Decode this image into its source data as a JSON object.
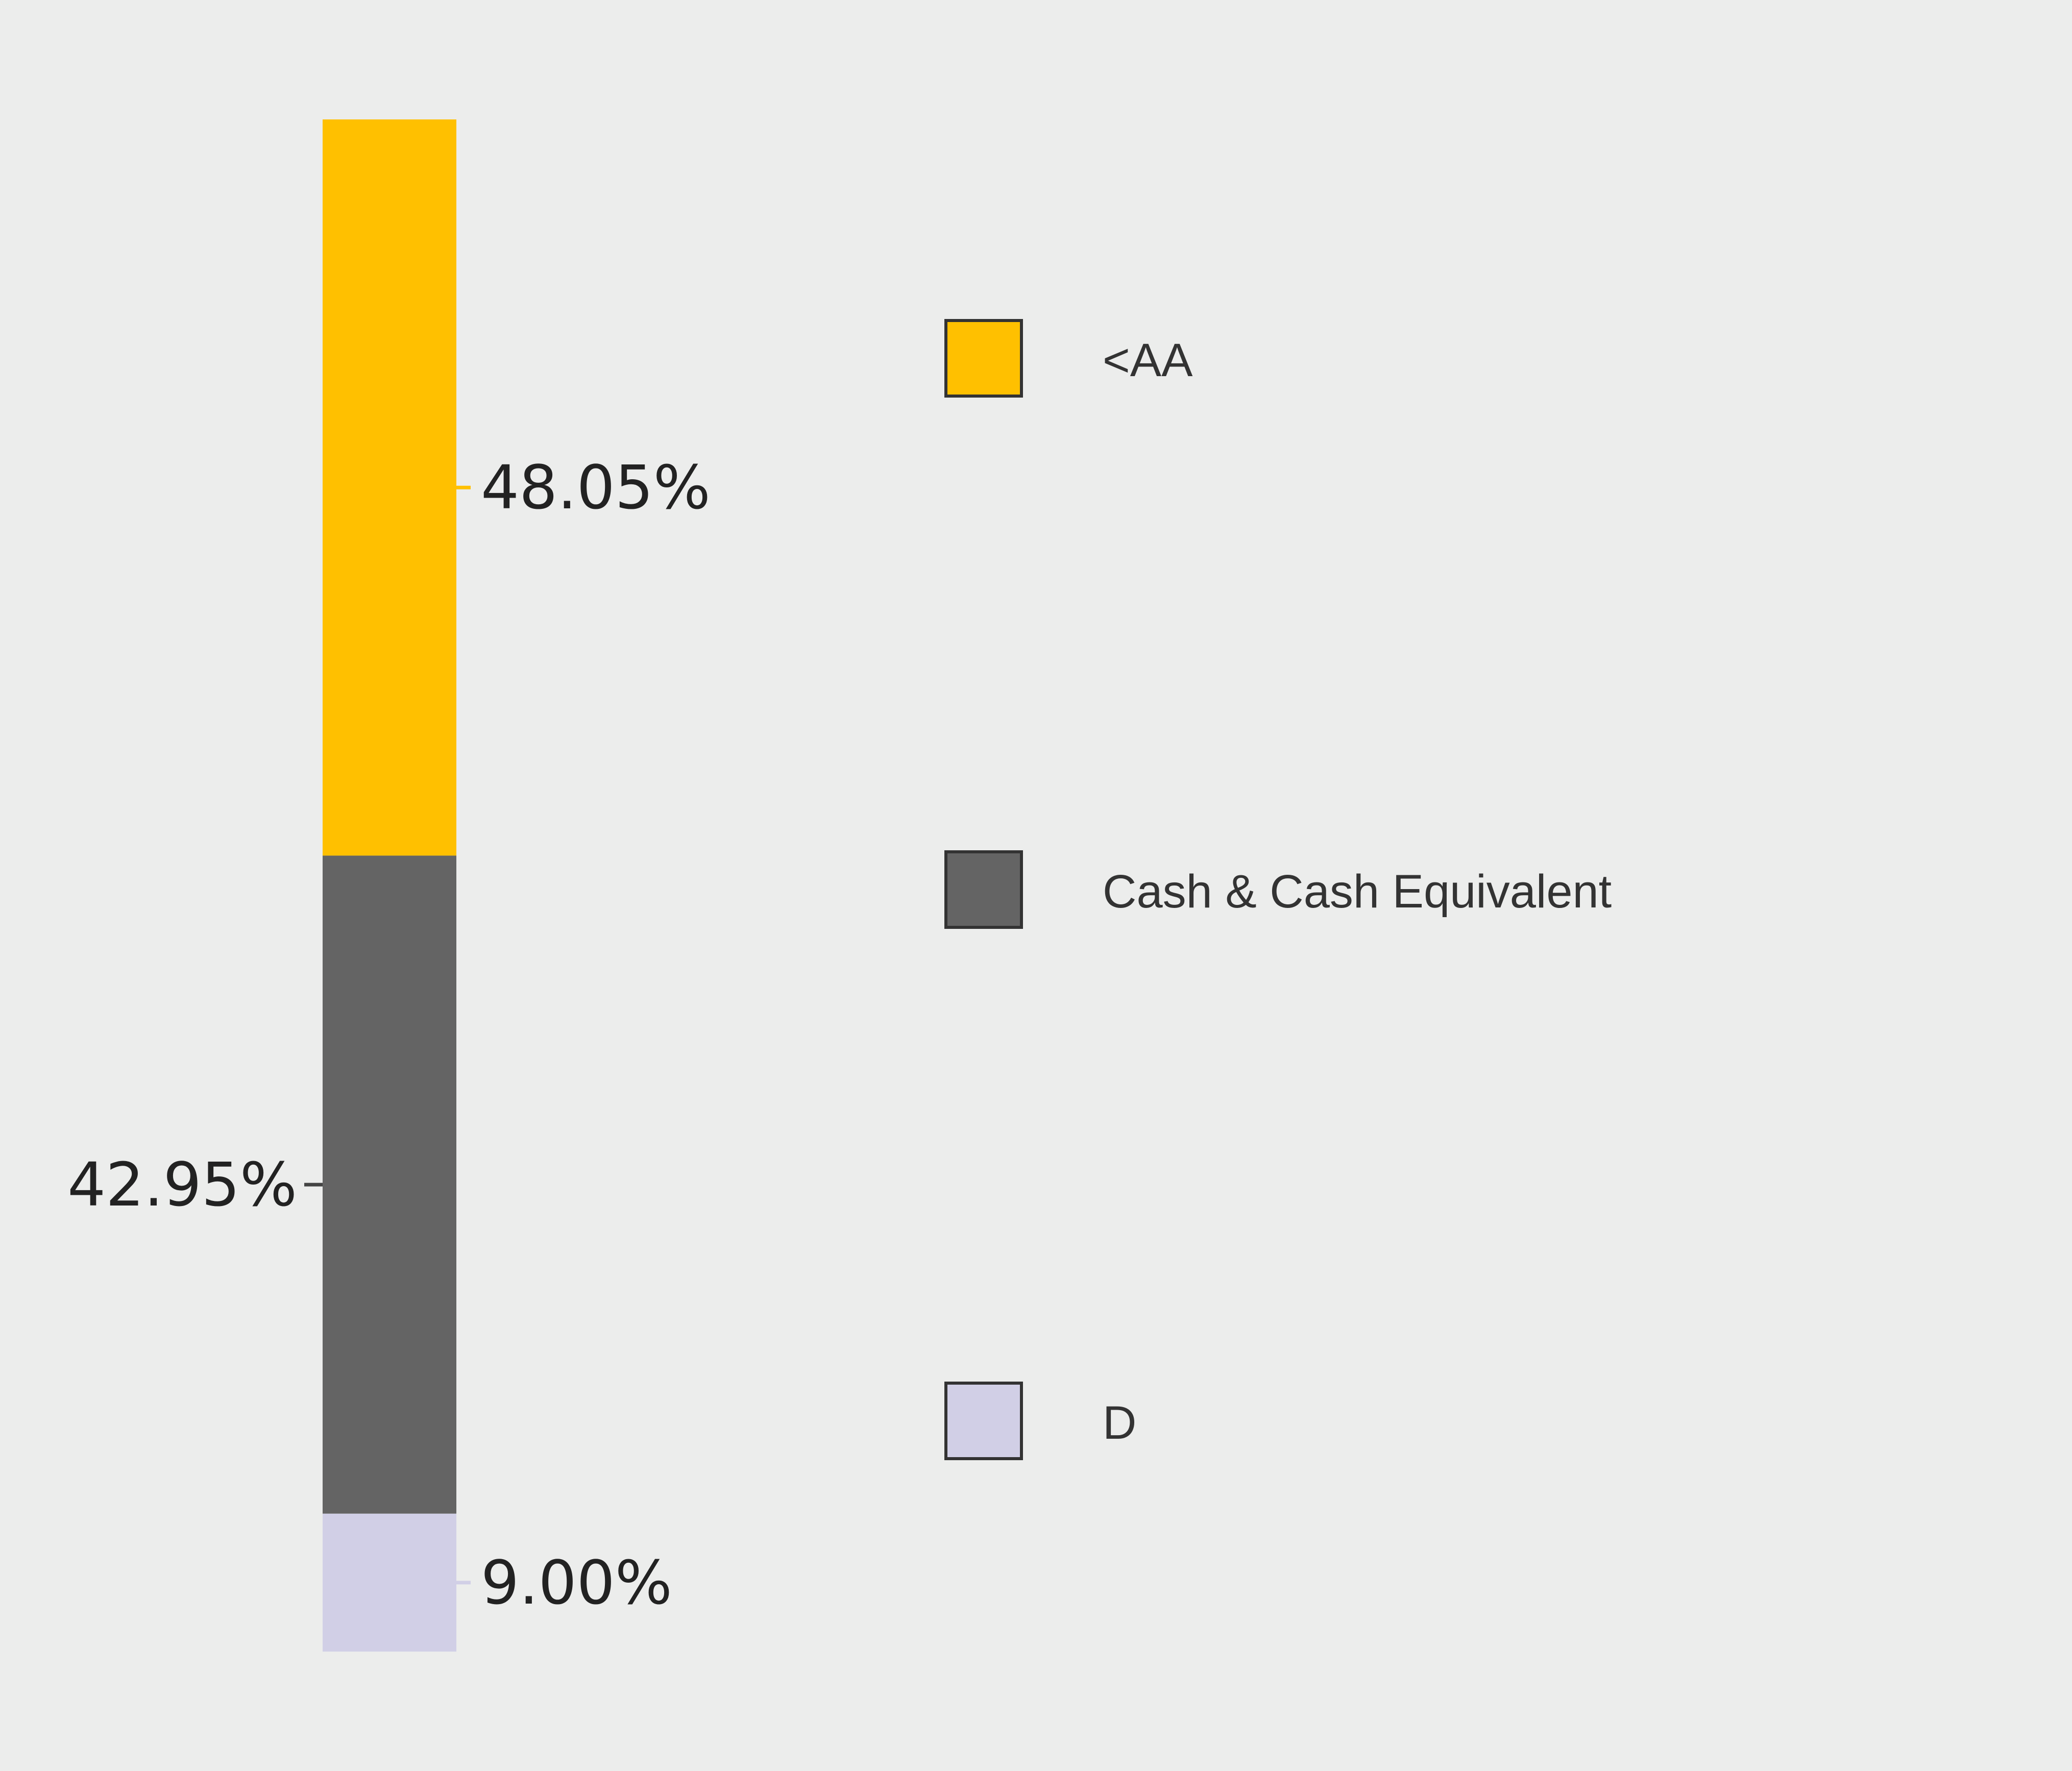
{
  "chart_data": {
    "type": "bar",
    "stacked": true,
    "orientation": "vertical",
    "series": [
      {
        "name": "<AA",
        "value": 48.05,
        "label": "48.05%",
        "color": "#FFC000"
      },
      {
        "name": "Cash & Cash Equivalent",
        "value": 42.95,
        "label": "42.95%",
        "color": "#646464"
      },
      {
        "name": "D",
        "value": 9.0,
        "label": "9.00%",
        "color": "#D1CFE6"
      }
    ],
    "ylim": [
      0,
      100
    ],
    "grid": false,
    "legend_position": "right"
  }
}
